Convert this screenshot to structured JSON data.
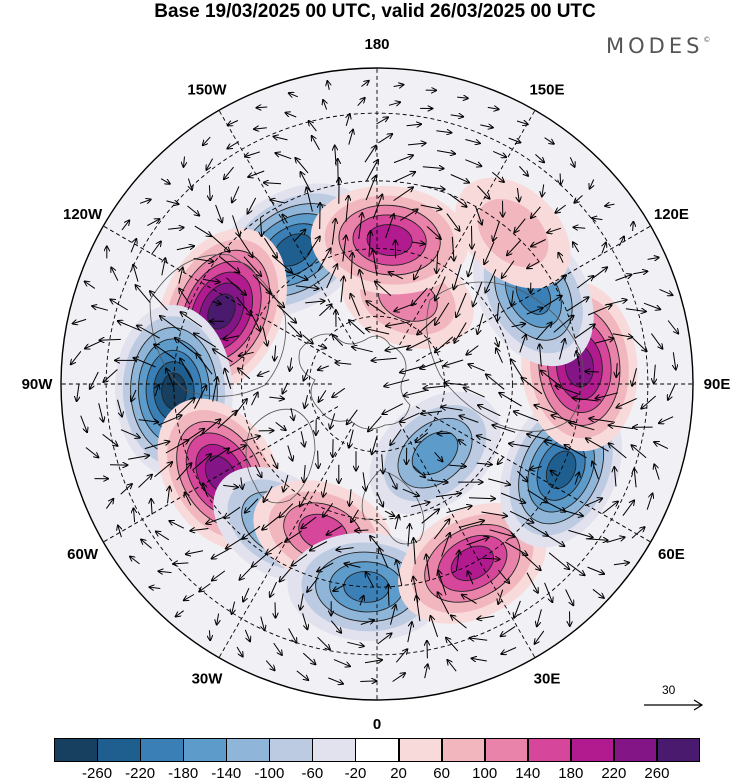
{
  "title": "Base 19/03/2025 00 UTC, valid 26/03/2025 00 UTC",
  "brand": {
    "name": "MODES",
    "mark": "©"
  },
  "longitude_labels": [
    {
      "text": "180",
      "lon": 180
    },
    {
      "text": "150E",
      "lon": 150
    },
    {
      "text": "120E",
      "lon": 120
    },
    {
      "text": "90E",
      "lon": 90
    },
    {
      "text": "60E",
      "lon": 60
    },
    {
      "text": "30E",
      "lon": 30
    },
    {
      "text": "0",
      "lon": 0
    },
    {
      "text": "30W",
      "lon": -30
    },
    {
      "text": "60W",
      "lon": -60
    },
    {
      "text": "90W",
      "lon": -90
    },
    {
      "text": "120W",
      "lon": -120
    },
    {
      "text": "150W",
      "lon": -150
    }
  ],
  "reference_vector": {
    "label": "30"
  },
  "colorbar": {
    "levels": [
      "-260",
      "-220",
      "-180",
      "-140",
      "-100",
      "-60",
      "-20",
      "20",
      "60",
      "100",
      "140",
      "180",
      "220",
      "260"
    ],
    "colors": [
      "#173f5f",
      "#1f5f8f",
      "#3a7fb6",
      "#5d9bca",
      "#8fb6d9",
      "#bccbe2",
      "#e2e2ef",
      "#ffffff",
      "#f8dada",
      "#f2b6bf",
      "#ea83a9",
      "#d6479c",
      "#b21a8f",
      "#841586",
      "#4a1a6f"
    ]
  },
  "anomalies": [
    {
      "name": "low-north-america-northwest",
      "value": -250,
      "lat": 55,
      "lon": -148
    },
    {
      "name": "high-north-america",
      "value": 270,
      "lat": 52,
      "lon": -115
    },
    {
      "name": "low-hudson",
      "value": -260,
      "lat": 45,
      "lon": -88
    },
    {
      "name": "high-atlantic-west",
      "value": 220,
      "lat": 50,
      "lon": -60
    },
    {
      "name": "low-greenland-south",
      "value": -140,
      "lat": 52,
      "lon": -35
    },
    {
      "name": "high-iceland",
      "value": 140,
      "lat": 55,
      "lon": -20
    },
    {
      "name": "low-europe-west",
      "value": -200,
      "lat": 45,
      "lon": -3
    },
    {
      "name": "high-europe",
      "value": 200,
      "lat": 45,
      "lon": 28
    },
    {
      "name": "low-russia-west",
      "value": -160,
      "lat": 70,
      "lon": 40
    },
    {
      "name": "low-siberia-west",
      "value": -220,
      "lat": 45,
      "lon": 65
    },
    {
      "name": "high-siberia",
      "value": 250,
      "lat": 45,
      "lon": 95
    },
    {
      "name": "low-east-asia",
      "value": -190,
      "lat": 50,
      "lon": 120
    },
    {
      "name": "high-japan",
      "value": 90,
      "lat": 45,
      "lon": 138
    },
    {
      "name": "high-chukchi",
      "value": 110,
      "lat": 70,
      "lon": 160
    },
    {
      "name": "high-bering",
      "value": 200,
      "lat": 58,
      "lon": 175
    }
  ]
}
